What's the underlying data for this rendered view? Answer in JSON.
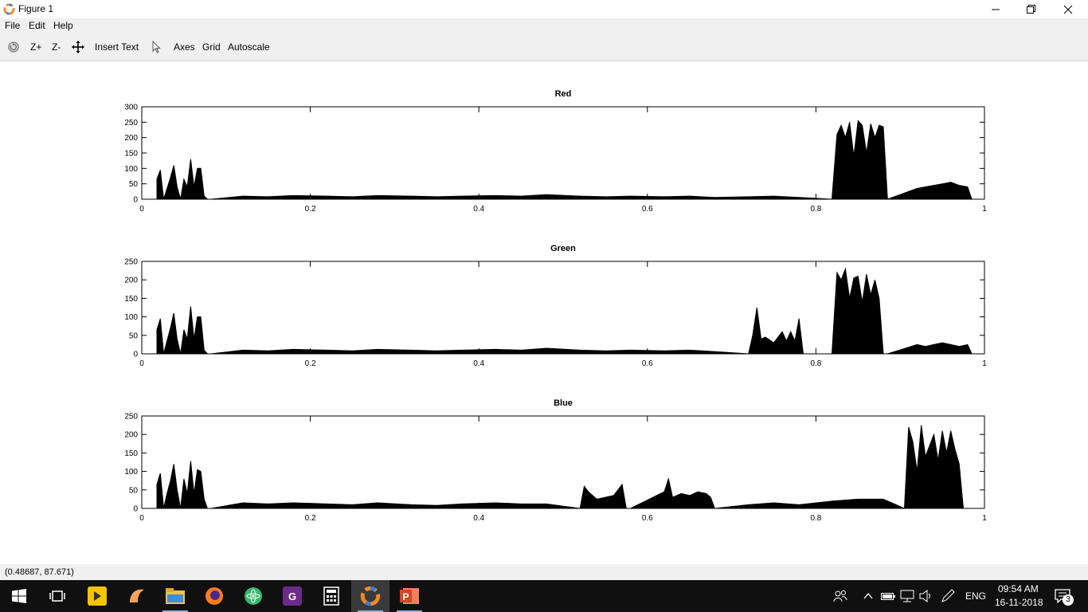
{
  "window": {
    "title": "Figure 1",
    "controls": [
      "minimize",
      "maximize",
      "close"
    ]
  },
  "menu": {
    "items": [
      "File",
      "Edit",
      "Help"
    ]
  },
  "toolbar": {
    "zoom_in": "Z+",
    "zoom_out": "Z-",
    "insert_text": "Insert Text",
    "axes": "Axes",
    "grid": "Grid",
    "autoscale": "Autoscale"
  },
  "status": {
    "coords": "(0.48687, 87.671)"
  },
  "taskbar": {
    "language": "ENG",
    "time": "09:54 AM",
    "date": "16-11-2018",
    "notification_count": "3",
    "apps": [
      "start-icon",
      "task-view-icon",
      "player-icon",
      "fruit-icon",
      "file-explorer-icon",
      "firefox-icon",
      "atom-icon",
      "pdf-icon",
      "calculator-icon",
      "octave-icon",
      "powerpoint-icon"
    ]
  },
  "chart_data": [
    {
      "type": "area",
      "title": "Red",
      "xlim": [
        0,
        1
      ],
      "ylim": [
        0,
        300
      ],
      "xticks": [
        "0",
        "0.2",
        "0.4",
        "0.6",
        "0.8",
        "1"
      ],
      "yticks": [
        "0",
        "50",
        "100",
        "150",
        "200",
        "250",
        "300"
      ],
      "series": [
        {
          "color": "#000000",
          "x": [
            0.018,
            0.022,
            0.026,
            0.03,
            0.034,
            0.038,
            0.042,
            0.046,
            0.05,
            0.054,
            0.058,
            0.062,
            0.066,
            0.07,
            0.074,
            0.078,
            0.082,
            0.12,
            0.15,
            0.18,
            0.22,
            0.25,
            0.28,
            0.32,
            0.35,
            0.38,
            0.42,
            0.45,
            0.48,
            0.52,
            0.55,
            0.58,
            0.62,
            0.65,
            0.68,
            0.72,
            0.75,
            0.78,
            0.819,
            0.825,
            0.83,
            0.835,
            0.84,
            0.845,
            0.85,
            0.855,
            0.86,
            0.865,
            0.87,
            0.875,
            0.88,
            0.885,
            0.92,
            0.93,
            0.94,
            0.95,
            0.96,
            0.97,
            0.98,
            0.985
          ],
          "y": [
            65,
            95,
            0,
            35,
            70,
            110,
            40,
            0,
            65,
            40,
            130,
            40,
            100,
            100,
            10,
            0,
            0,
            10,
            8,
            12,
            10,
            8,
            12,
            10,
            8,
            10,
            12,
            10,
            15,
            10,
            8,
            10,
            8,
            10,
            6,
            8,
            10,
            6,
            0,
            210,
            240,
            200,
            250,
            140,
            255,
            240,
            150,
            245,
            200,
            240,
            235,
            0,
            35,
            40,
            45,
            50,
            55,
            45,
            40,
            0
          ]
        }
      ]
    },
    {
      "type": "area",
      "title": "Green",
      "xlim": [
        0,
        1
      ],
      "ylim": [
        0,
        250
      ],
      "xticks": [
        "0",
        "0.2",
        "0.4",
        "0.6",
        "0.8",
        "1"
      ],
      "yticks": [
        "0",
        "50",
        "100",
        "150",
        "200",
        "250"
      ],
      "series": [
        {
          "color": "#000000",
          "x": [
            0.018,
            0.022,
            0.026,
            0.03,
            0.034,
            0.038,
            0.042,
            0.046,
            0.05,
            0.054,
            0.058,
            0.062,
            0.066,
            0.07,
            0.074,
            0.078,
            0.082,
            0.12,
            0.15,
            0.18,
            0.22,
            0.25,
            0.28,
            0.32,
            0.35,
            0.38,
            0.42,
            0.45,
            0.48,
            0.52,
            0.55,
            0.58,
            0.62,
            0.65,
            0.68,
            0.72,
            0.725,
            0.73,
            0.735,
            0.74,
            0.75,
            0.76,
            0.765,
            0.77,
            0.775,
            0.78,
            0.785,
            0.819,
            0.825,
            0.83,
            0.835,
            0.84,
            0.845,
            0.85,
            0.855,
            0.86,
            0.865,
            0.87,
            0.875,
            0.88,
            0.885,
            0.92,
            0.93,
            0.94,
            0.95,
            0.96,
            0.97,
            0.98,
            0.985
          ],
          "y": [
            65,
            95,
            0,
            35,
            70,
            110,
            40,
            0,
            65,
            40,
            128,
            40,
            100,
            100,
            10,
            0,
            0,
            10,
            8,
            12,
            10,
            8,
            12,
            10,
            8,
            10,
            12,
            10,
            15,
            10,
            8,
            10,
            8,
            10,
            6,
            0,
            50,
            125,
            40,
            45,
            30,
            60,
            35,
            60,
            35,
            95,
            0,
            0,
            220,
            200,
            230,
            150,
            205,
            210,
            140,
            215,
            160,
            200,
            150,
            0,
            0,
            25,
            20,
            25,
            30,
            25,
            20,
            25,
            0
          ]
        }
      ]
    },
    {
      "type": "area",
      "title": "Blue",
      "xlim": [
        0,
        1
      ],
      "ylim": [
        0,
        250
      ],
      "xticks": [
        "0",
        "0.2",
        "0.4",
        "0.6",
        "0.8",
        "1"
      ],
      "yticks": [
        "0",
        "50",
        "100",
        "150",
        "200",
        "250"
      ],
      "series": [
        {
          "color": "#000000",
          "x": [
            0.018,
            0.022,
            0.026,
            0.03,
            0.034,
            0.038,
            0.042,
            0.046,
            0.05,
            0.054,
            0.058,
            0.062,
            0.066,
            0.07,
            0.074,
            0.078,
            0.082,
            0.12,
            0.15,
            0.18,
            0.22,
            0.25,
            0.28,
            0.32,
            0.35,
            0.38,
            0.42,
            0.45,
            0.48,
            0.52,
            0.525,
            0.53,
            0.54,
            0.55,
            0.56,
            0.57,
            0.575,
            0.58,
            0.62,
            0.625,
            0.63,
            0.64,
            0.65,
            0.66,
            0.67,
            0.675,
            0.68,
            0.72,
            0.75,
            0.78,
            0.82,
            0.85,
            0.88,
            0.905,
            0.91,
            0.915,
            0.92,
            0.925,
            0.93,
            0.935,
            0.94,
            0.945,
            0.95,
            0.955,
            0.96,
            0.965,
            0.97,
            0.975
          ],
          "y": [
            65,
            95,
            0,
            40,
            75,
            120,
            50,
            0,
            80,
            40,
            128,
            40,
            105,
            100,
            25,
            0,
            0,
            15,
            12,
            15,
            12,
            10,
            15,
            10,
            8,
            12,
            15,
            12,
            12,
            0,
            60,
            45,
            25,
            30,
            35,
            65,
            0,
            0,
            45,
            80,
            30,
            40,
            35,
            45,
            40,
            30,
            0,
            10,
            15,
            10,
            20,
            25,
            25,
            0,
            220,
            180,
            100,
            225,
            140,
            170,
            200,
            130,
            210,
            150,
            210,
            160,
            120,
            0
          ]
        }
      ]
    }
  ]
}
